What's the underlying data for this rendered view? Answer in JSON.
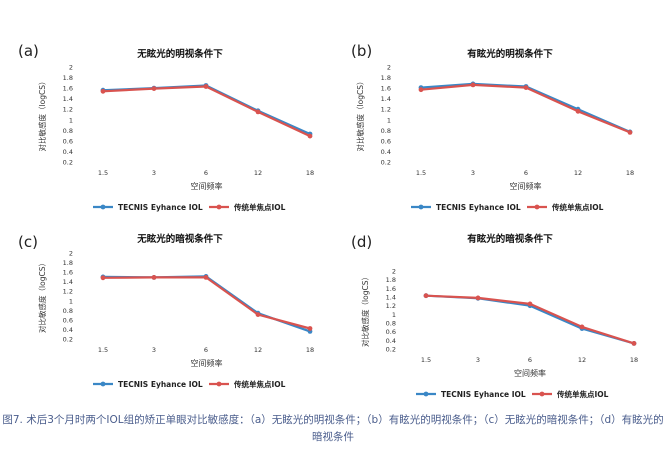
{
  "figure": {
    "caption": "图7. 术后3个月时两个IOL组的矫正单眼对比敏感度：（a）无眩光的明视条件；（b）有眩光的明视条件；（c）无眩光的暗视条件；（d）有眩光的暗视条件"
  },
  "colors": {
    "tecnis": "#3a87c6",
    "traditional": "#d9534f",
    "axis": "#444444",
    "grid": "#cfcfcf"
  },
  "chart_data": [
    {
      "type": "line",
      "panel_label": "(a)",
      "title": "无眩光的明视条件下",
      "xlabel": "空间频率",
      "ylabel": "对比敏感度（logCS）",
      "categories": [
        "1.5",
        "3",
        "6",
        "12",
        "18"
      ],
      "yticks": [
        "0.2",
        "0.4",
        "0.6",
        "0.8",
        "1",
        "1.2",
        "1.4",
        "1.6",
        "1.8",
        "2"
      ],
      "ylim": [
        0.2,
        2
      ],
      "series": [
        {
          "name": "TECNIS Eyhance IOL",
          "values": [
            1.56,
            1.6,
            1.65,
            1.17,
            0.73
          ]
        },
        {
          "name": "传统单焦点IOL",
          "values": [
            1.54,
            1.59,
            1.63,
            1.15,
            0.69
          ]
        }
      ]
    },
    {
      "type": "line",
      "panel_label": "(b)",
      "title": "有眩光的明视条件下",
      "xlabel": "空间频率",
      "ylabel": "对比敏感度（logCS）",
      "categories": [
        "1.5",
        "3",
        "6",
        "12",
        "18"
      ],
      "yticks": [
        "0.2",
        "0.4",
        "0.6",
        "0.8",
        "1",
        "1.2",
        "1.4",
        "1.6",
        "1.8",
        "2"
      ],
      "ylim": [
        0.2,
        2
      ],
      "series": [
        {
          "name": "TECNIS Eyhance IOL",
          "values": [
            1.61,
            1.68,
            1.63,
            1.2,
            0.77
          ]
        },
        {
          "name": "传统单焦点IOL",
          "values": [
            1.57,
            1.66,
            1.61,
            1.16,
            0.76
          ]
        }
      ]
    },
    {
      "type": "line",
      "panel_label": "(c)",
      "title": "无眩光的暗视条件下",
      "xlabel": "空间频率",
      "ylabel": "对比敏感度（logCS）",
      "categories": [
        "1.5",
        "3",
        "6",
        "12",
        "18"
      ],
      "yticks": [
        "0.2",
        "0.4",
        "0.6",
        "0.8",
        "1",
        "1.2",
        "1.4",
        "1.6",
        "1.8",
        "2"
      ],
      "ylim": [
        0.2,
        2
      ],
      "series": [
        {
          "name": "TECNIS Eyhance IOL",
          "values": [
            1.5,
            1.49,
            1.51,
            0.74,
            0.36
          ]
        },
        {
          "name": "传统单焦点IOL",
          "values": [
            1.48,
            1.49,
            1.49,
            0.71,
            0.42
          ]
        }
      ]
    },
    {
      "type": "line",
      "panel_label": "(d)",
      "title": "有眩光的暗视条件下",
      "xlabel": "空间频率",
      "ylabel": "对比敏感度（logCS）",
      "categories": [
        "1.5",
        "3",
        "6",
        "12",
        "18"
      ],
      "yticks": [
        "0.2",
        "0.4",
        "0.6",
        "0.8",
        "1",
        "1.2",
        "1.4",
        "1.6",
        "1.8",
        "2"
      ],
      "ylim": [
        0.2,
        2
      ],
      "series": [
        {
          "name": "TECNIS Eyhance IOL",
          "values": [
            1.43,
            1.37,
            1.2,
            0.67,
            0.33
          ]
        },
        {
          "name": "传统单焦点IOL",
          "values": [
            1.43,
            1.38,
            1.24,
            0.71,
            0.33
          ]
        }
      ]
    }
  ]
}
